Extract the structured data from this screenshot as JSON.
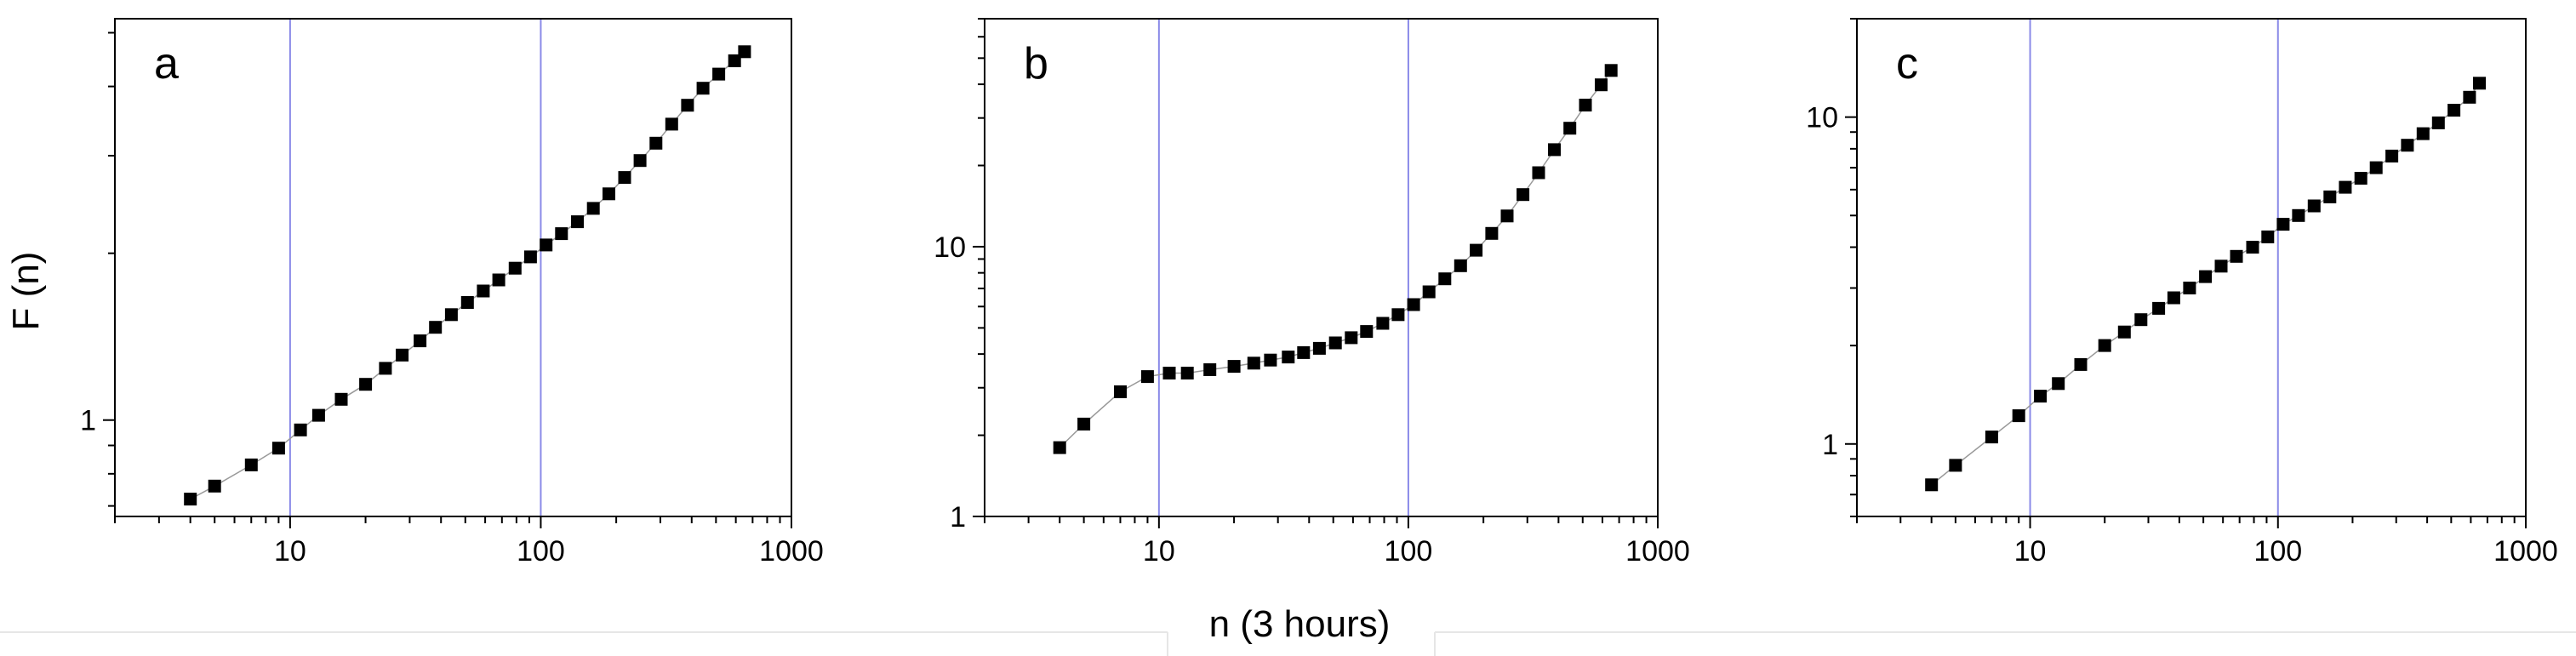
{
  "figure": {
    "ylabel": "F (n)",
    "xlabel": "n (3 hours)"
  },
  "chart_data": [
    {
      "type": "scatter",
      "panel_label": "a",
      "x_scale": "log",
      "y_scale": "log",
      "xlim": [
        2,
        1000
      ],
      "ylim": [
        0.67,
        5.3
      ],
      "x_ticks": [
        {
          "value": 10,
          "label": "10"
        },
        {
          "value": 100,
          "label": "100"
        },
        {
          "value": 1000,
          "label": "1000"
        }
      ],
      "y_ticks": [
        {
          "value": 1,
          "label": "1"
        }
      ],
      "reference_lines_x": [
        10,
        100
      ],
      "series": [
        {
          "x": [
            4,
            5,
            7,
            9,
            11,
            13,
            16,
            20,
            24,
            28,
            33,
            38,
            44,
            51,
            59,
            68,
            79,
            91,
            105,
            121,
            140,
            162,
            187,
            216,
            249,
            288,
            333,
            385,
            444,
            513,
            593,
            650
          ],
          "y": [
            0.72,
            0.76,
            0.83,
            0.89,
            0.96,
            1.02,
            1.09,
            1.16,
            1.24,
            1.31,
            1.39,
            1.47,
            1.55,
            1.63,
            1.71,
            1.79,
            1.88,
            1.97,
            2.07,
            2.17,
            2.28,
            2.41,
            2.56,
            2.74,
            2.94,
            3.16,
            3.42,
            3.7,
            3.97,
            4.21,
            4.45,
            4.62
          ],
          "line_color": "#999999",
          "marker_color": "#000000"
        }
      ]
    },
    {
      "type": "scatter",
      "panel_label": "b",
      "x_scale": "log",
      "y_scale": "log",
      "xlim": [
        2,
        1000
      ],
      "ylim": [
        1,
        70
      ],
      "x_ticks": [
        {
          "value": 10,
          "label": "10"
        },
        {
          "value": 100,
          "label": "100"
        },
        {
          "value": 1000,
          "label": "1000"
        }
      ],
      "y_ticks": [
        {
          "value": 1,
          "label": "1"
        },
        {
          "value": 10,
          "label": "10"
        }
      ],
      "reference_lines_x": [
        10,
        100
      ],
      "series": [
        {
          "x": [
            4,
            5,
            7,
            9,
            11,
            13,
            16,
            20,
            24,
            28,
            33,
            38,
            44,
            51,
            59,
            68,
            79,
            91,
            105,
            121,
            140,
            162,
            187,
            216,
            249,
            288,
            333,
            385,
            444,
            513,
            593,
            650
          ],
          "y": [
            1.8,
            2.2,
            2.9,
            3.3,
            3.4,
            3.4,
            3.5,
            3.6,
            3.7,
            3.8,
            3.9,
            4.05,
            4.2,
            4.4,
            4.6,
            4.85,
            5.2,
            5.6,
            6.1,
            6.8,
            7.6,
            8.5,
            9.7,
            11.2,
            13.0,
            15.6,
            18.8,
            22.9,
            27.5,
            33.5,
            39.8,
            45.0
          ],
          "line_color": "#999999",
          "marker_color": "#000000"
        }
      ]
    },
    {
      "type": "scatter",
      "panel_label": "c",
      "x_scale": "log",
      "y_scale": "log",
      "xlim": [
        2,
        1000
      ],
      "ylim": [
        0.6,
        20
      ],
      "x_ticks": [
        {
          "value": 10,
          "label": "10"
        },
        {
          "value": 100,
          "label": "100"
        },
        {
          "value": 1000,
          "label": "1000"
        }
      ],
      "y_ticks": [
        {
          "value": 1,
          "label": "1"
        },
        {
          "value": 10,
          "label": "10"
        }
      ],
      "reference_lines_x": [
        10,
        100
      ],
      "series": [
        {
          "x": [
            4,
            5,
            7,
            9,
            11,
            13,
            16,
            20,
            24,
            28,
            33,
            38,
            44,
            51,
            59,
            68,
            79,
            91,
            105,
            121,
            140,
            162,
            187,
            216,
            249,
            288,
            333,
            385,
            444,
            513,
            593,
            650
          ],
          "y": [
            0.75,
            0.86,
            1.05,
            1.22,
            1.4,
            1.53,
            1.75,
            2.0,
            2.2,
            2.4,
            2.6,
            2.8,
            3.0,
            3.25,
            3.5,
            3.75,
            4.0,
            4.3,
            4.7,
            5.0,
            5.35,
            5.7,
            6.1,
            6.5,
            7.0,
            7.6,
            8.2,
            8.9,
            9.6,
            10.5,
            11.5,
            12.7
          ],
          "line_color": "#999999",
          "marker_color": "#000000"
        }
      ]
    }
  ],
  "style": {
    "reference_line_color": "#8a8ae8",
    "axis_color": "#000000",
    "separator_color": "#e6e6e6"
  }
}
